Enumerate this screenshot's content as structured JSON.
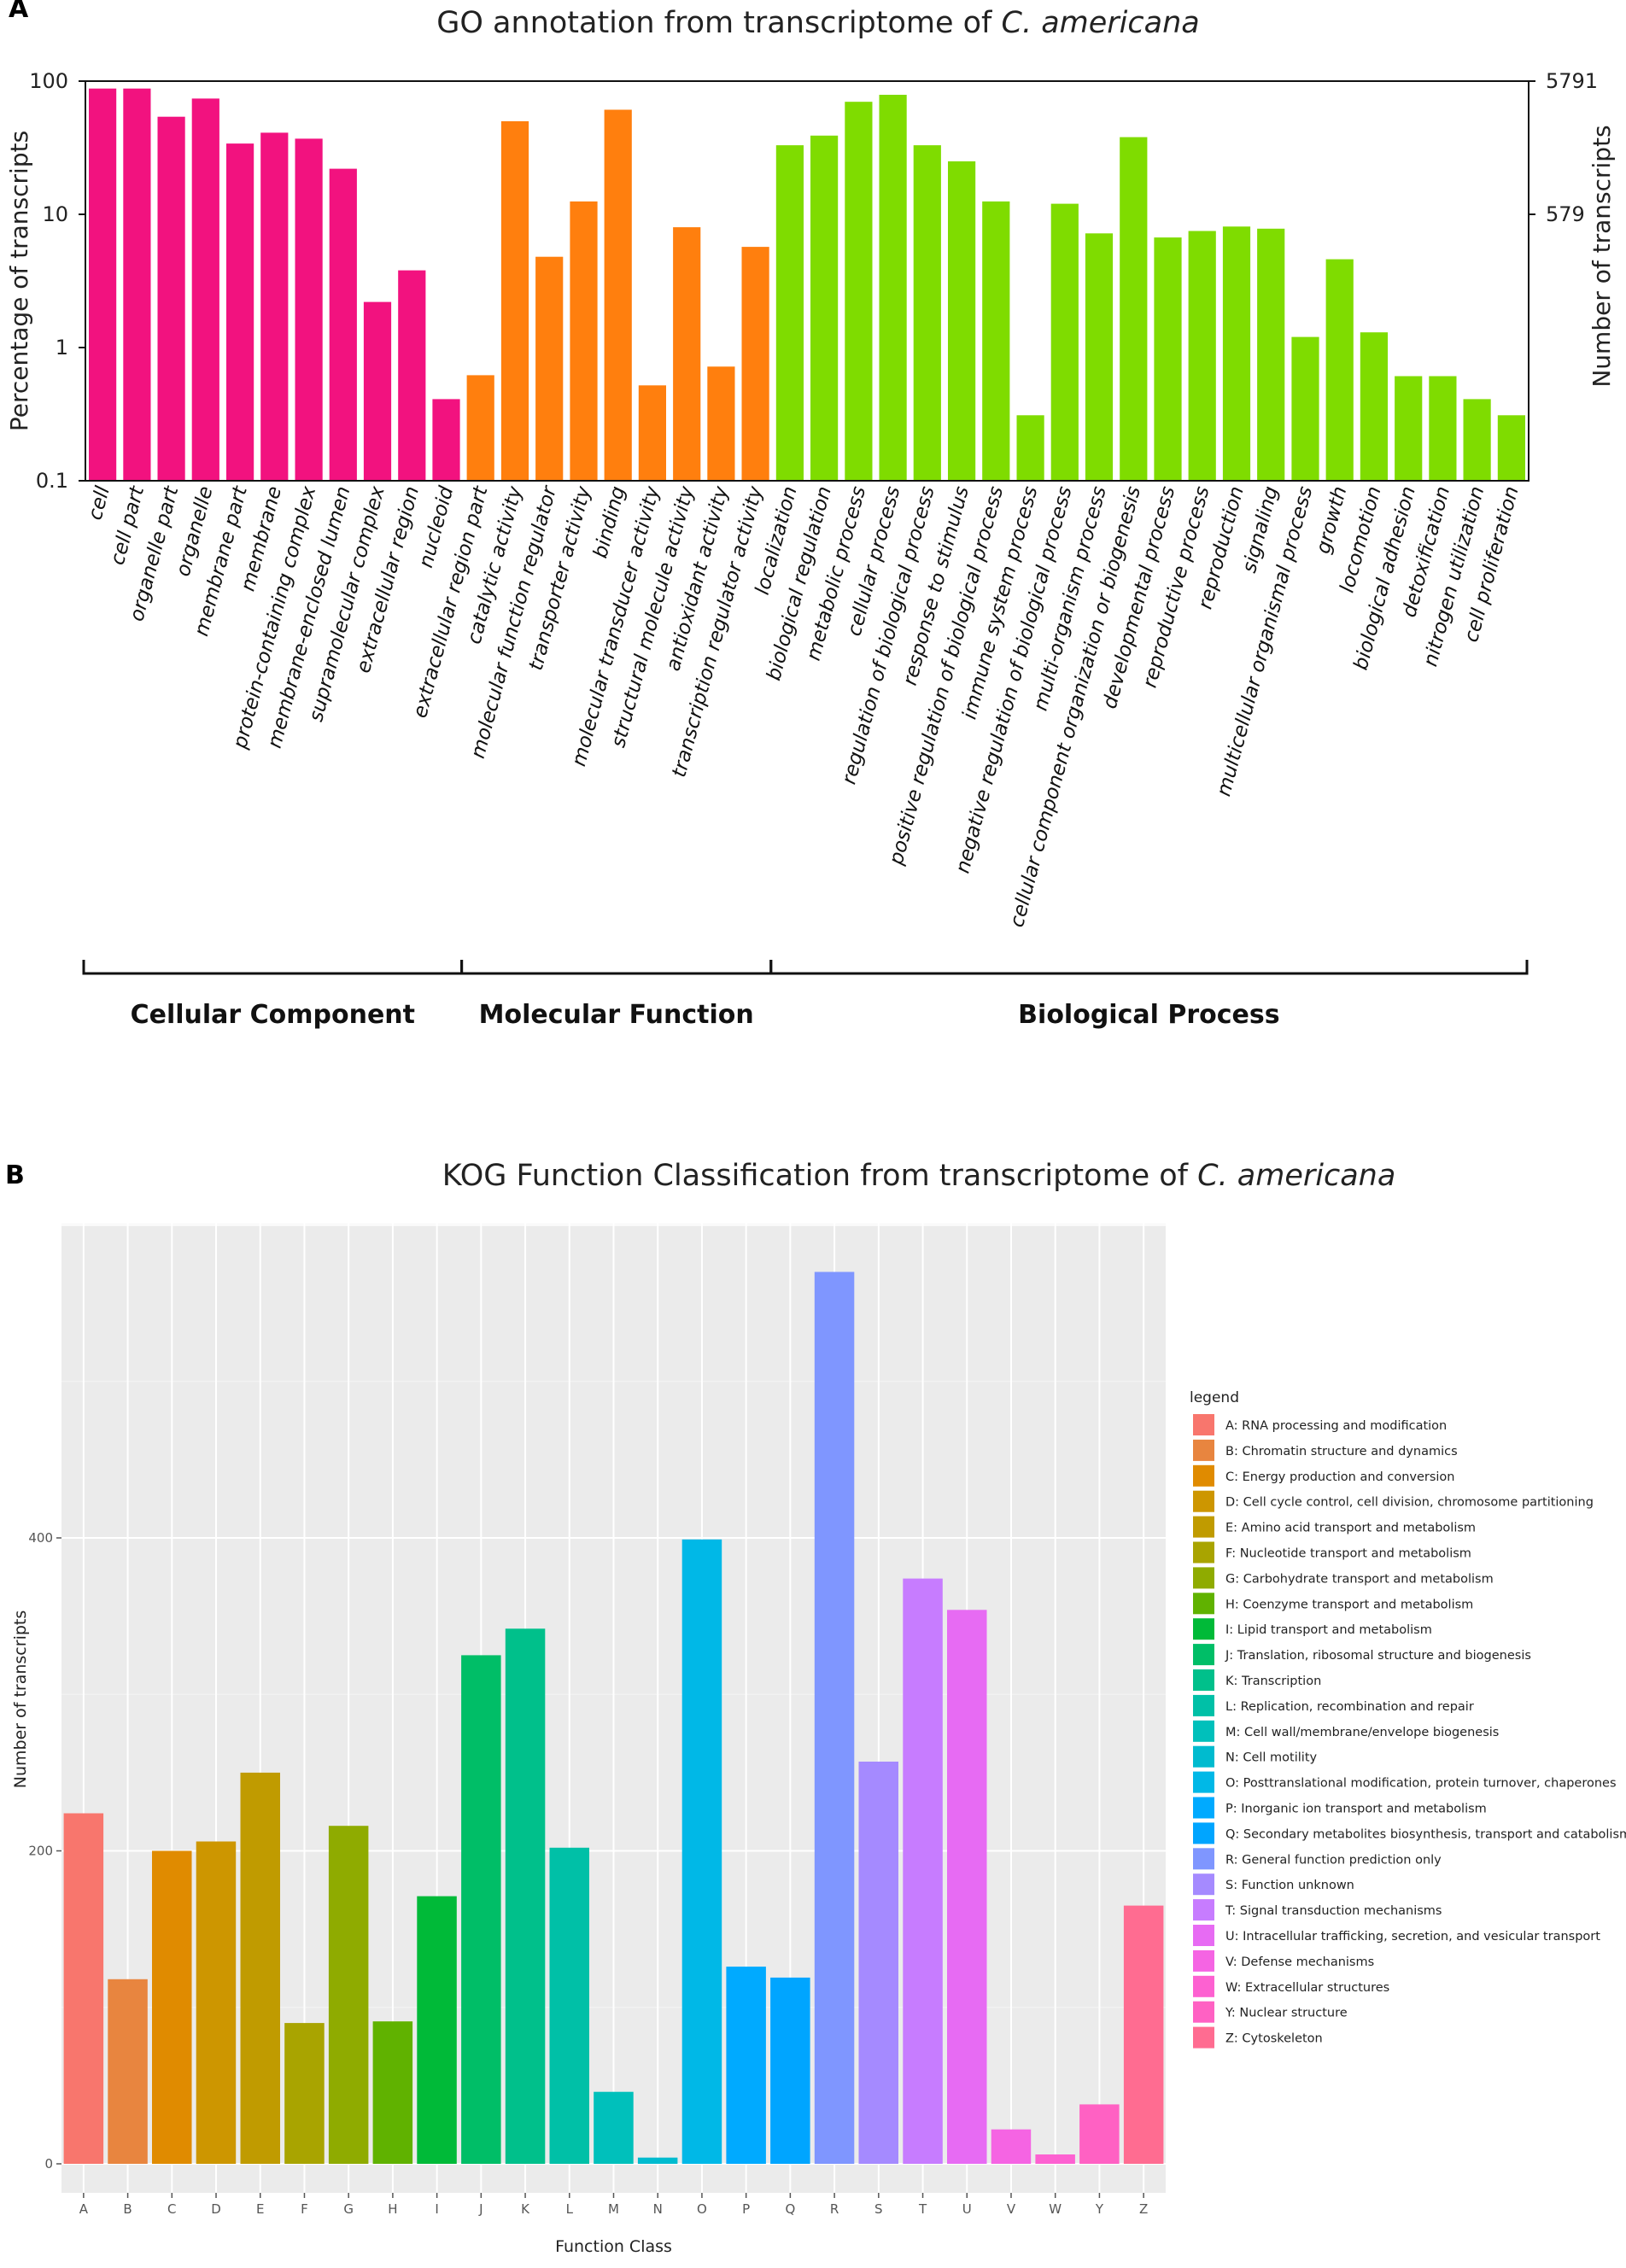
{
  "chart_data": [
    {
      "panel": "A",
      "type": "bar",
      "title_prefix": "GO annotation from transcriptome of ",
      "title_species": "C. americana",
      "ylabel_left": "Percentage of transcripts",
      "ylabel_right": "Number of transcripts",
      "y_scale": "log",
      "ylim": [
        0.1,
        100
      ],
      "yticks_left": [
        "0.1",
        "1",
        "10",
        "100"
      ],
      "yticks_right": [
        "579",
        "5791"
      ],
      "colors": {
        "Cellular Component": "#f2127f",
        "Molecular Function": "#ff7f0e",
        "Biological Process": "#7fdc00"
      },
      "groups": [
        {
          "name": "Cellular Component",
          "start": 0,
          "end": 10
        },
        {
          "name": "Molecular Function",
          "start": 11,
          "end": 19
        },
        {
          "name": "Biological Process",
          "start": 20,
          "end": 41
        }
      ],
      "categories": [
        "cell",
        "cell part",
        "organelle part",
        "organelle",
        "membrane part",
        "membrane",
        "protein-containing complex",
        "membrane-enclosed lumen",
        "supramolecular complex",
        "extracellular region",
        "nucleoid",
        "extracellular region part",
        "catalytic activity",
        "molecular function regulator",
        "transporter activity",
        "binding",
        "molecular transducer activity",
        "structural molecule activity",
        "antioxidant activity",
        "transcription regulator activity",
        "localization",
        "biological regulation",
        "metabolic process",
        "cellular process",
        "regulation of biological process",
        "response to stimulus",
        "positive regulation of biological process",
        "immune system process",
        "negative regulation of biological process",
        "multi-organism process",
        "cellular component organization or biogenesis",
        "developmental process",
        "reproductive process",
        "reproduction",
        "signaling",
        "multicellular organismal process",
        "growth",
        "locomotion",
        "biological adhesion",
        "detoxification",
        "nitrogen utilization",
        "cell proliferation"
      ],
      "values": [
        88,
        88,
        54,
        74,
        34,
        41,
        37,
        22,
        2.2,
        3.8,
        0.41,
        0.62,
        50,
        4.8,
        12.5,
        61,
        0.52,
        8,
        0.72,
        5.7,
        33,
        39,
        70,
        79,
        33,
        25,
        12.5,
        0.31,
        12,
        7.2,
        38,
        6.7,
        7.5,
        8.1,
        7.8,
        1.2,
        4.6,
        1.3,
        0.61,
        0.61,
        0.41,
        0.31
      ]
    },
    {
      "panel": "B",
      "type": "bar",
      "title_prefix": "KOG Function Classification from transcriptome of ",
      "title_species": "C. americana",
      "xlabel": "Function Class",
      "ylabel": "Number of transcripts",
      "ylim": [
        0,
        600
      ],
      "yticks": [
        "0",
        "200",
        "400"
      ],
      "legend_title": "legend",
      "categories": [
        "A",
        "B",
        "C",
        "D",
        "E",
        "F",
        "G",
        "H",
        "I",
        "J",
        "K",
        "L",
        "M",
        "N",
        "O",
        "P",
        "Q",
        "R",
        "S",
        "T",
        "U",
        "V",
        "W",
        "Y",
        "Z"
      ],
      "values": [
        224,
        118,
        200,
        206,
        250,
        90,
        216,
        91,
        171,
        325,
        342,
        202,
        46,
        4,
        399,
        126,
        119,
        570,
        257,
        374,
        354,
        22,
        6,
        38,
        165
      ],
      "colors": [
        "#f8766d",
        "#e8853f",
        "#e08b00",
        "#cd9600",
        "#c09b00",
        "#a9a400",
        "#8fab00",
        "#60b200",
        "#00ba38",
        "#00be67",
        "#00c08b",
        "#00c0a7",
        "#00c0bb",
        "#00bbcf",
        "#00b8e7",
        "#00aaff",
        "#00a5ff",
        "#7f96ff",
        "#a58aff",
        "#c77cff",
        "#e76bf3",
        "#f564e3",
        "#fd61d1",
        "#ff61c3",
        "#ff6c91"
      ],
      "legend": [
        "A: RNA processing and modification",
        "B: Chromatin structure and dynamics",
        "C: Energy production and conversion",
        "D: Cell cycle control, cell division, chromosome partitioning",
        "E: Amino acid transport and metabolism",
        "F: Nucleotide transport and metabolism",
        "G: Carbohydrate transport and metabolism",
        "H: Coenzyme transport and metabolism",
        "I: Lipid transport and metabolism",
        "J: Translation, ribosomal structure and biogenesis",
        "K: Transcription",
        "L: Replication, recombination and repair",
        "M: Cell wall/membrane/envelope biogenesis",
        "N: Cell motility",
        "O: Posttranslational modification, protein turnover, chaperones",
        "P: Inorganic ion transport and metabolism",
        "Q: Secondary metabolites biosynthesis, transport and catabolism",
        "R: General function prediction only",
        "S: Function unknown",
        "T: Signal transduction mechanisms",
        "U: Intracellular trafficking, secretion, and vesicular transport",
        "V: Defense mechanisms",
        "W: Extracellular structures",
        "Y: Nuclear structure",
        "Z: Cytoskeleton"
      ]
    }
  ]
}
